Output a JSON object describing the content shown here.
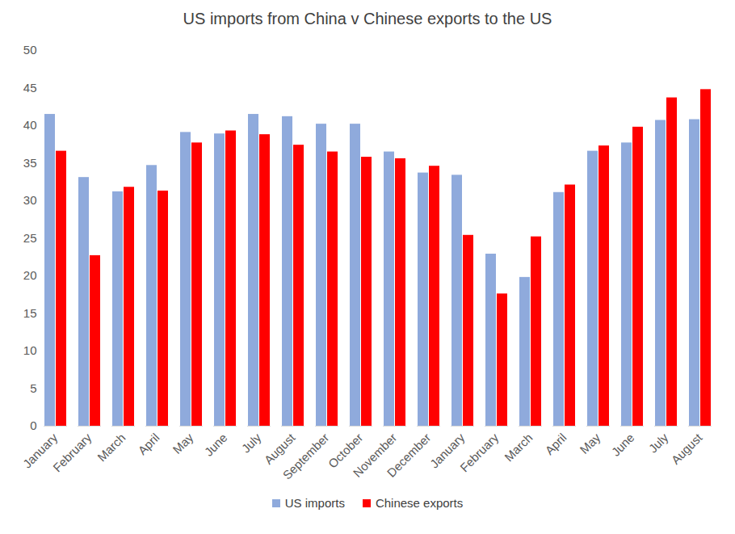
{
  "chart_data": {
    "type": "bar",
    "title": "US imports from China v Chinese exports to the US",
    "categories": [
      "January",
      "February",
      "March",
      "April",
      "May",
      "June",
      "July",
      "August",
      "September",
      "October",
      "November",
      "December",
      "January",
      "February",
      "March",
      "April",
      "May",
      "June",
      "July",
      "August"
    ],
    "series": [
      {
        "name": "US imports",
        "color": "#8faadc",
        "values": [
          41.5,
          33.1,
          31.2,
          34.7,
          39.1,
          38.9,
          41.5,
          41.2,
          40.2,
          40.2,
          36.5,
          33.7,
          33.4,
          22.9,
          19.8,
          31.1,
          36.6,
          37.7,
          40.7,
          40.8
        ]
      },
      {
        "name": "Chinese exports",
        "color": "#ff0000",
        "values": [
          36.6,
          22.7,
          31.8,
          31.3,
          37.7,
          39.3,
          38.8,
          37.4,
          36.5,
          35.8,
          35.6,
          34.6,
          25.4,
          17.6,
          25.2,
          32.1,
          37.3,
          39.8,
          43.7,
          44.8
        ]
      }
    ],
    "ylim": [
      0,
      50
    ],
    "yticks": [
      0,
      5,
      10,
      15,
      20,
      25,
      30,
      35,
      40,
      45,
      50
    ],
    "grid": false,
    "legend": "bottom"
  }
}
